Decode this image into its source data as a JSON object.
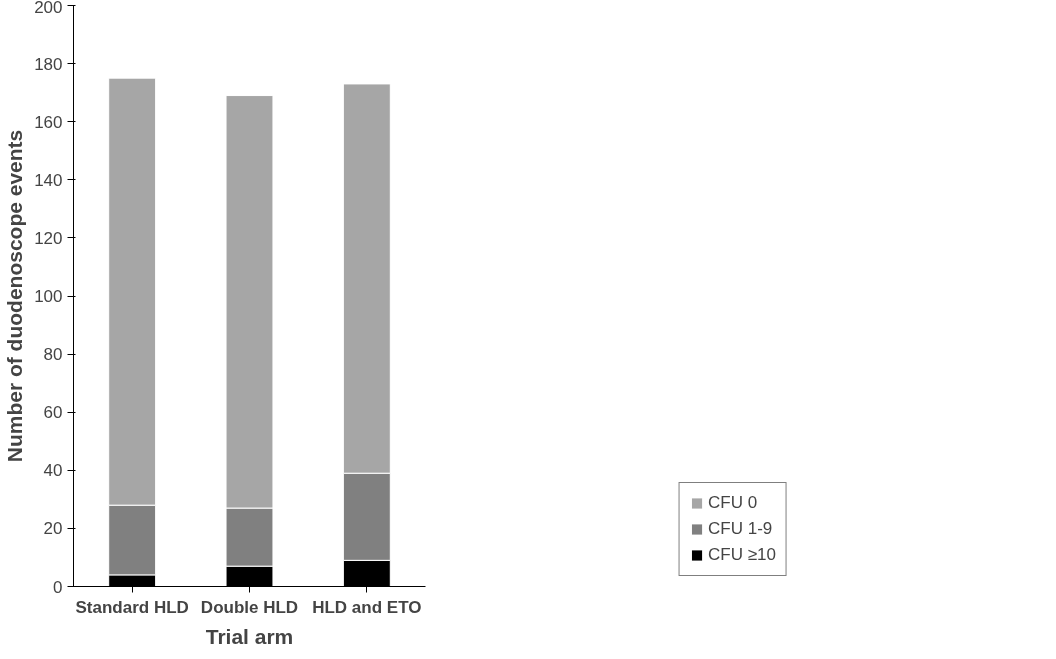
{
  "chart_data": {
    "type": "bar",
    "stacked": true,
    "xlabel": "Trial arm",
    "ylabel": "Number of duodenoscope events",
    "categories": [
      "Standard HLD",
      "Double HLD",
      "HLD and ETO"
    ],
    "series": [
      {
        "name": "CFU ≥10",
        "color": "#000000",
        "values": [
          4,
          7,
          9
        ]
      },
      {
        "name": "CFU 1-9",
        "color": "#808080",
        "values": [
          24,
          20,
          30
        ]
      },
      {
        "name": "CFU 0",
        "color": "#a6a6a6",
        "values": [
          147,
          142,
          134
        ]
      }
    ],
    "ylim": [
      0,
      200
    ],
    "yticks": [
      0,
      20,
      40,
      60,
      80,
      100,
      120,
      140,
      160,
      180,
      200
    ],
    "grid": false,
    "legend": "bottom right"
  }
}
